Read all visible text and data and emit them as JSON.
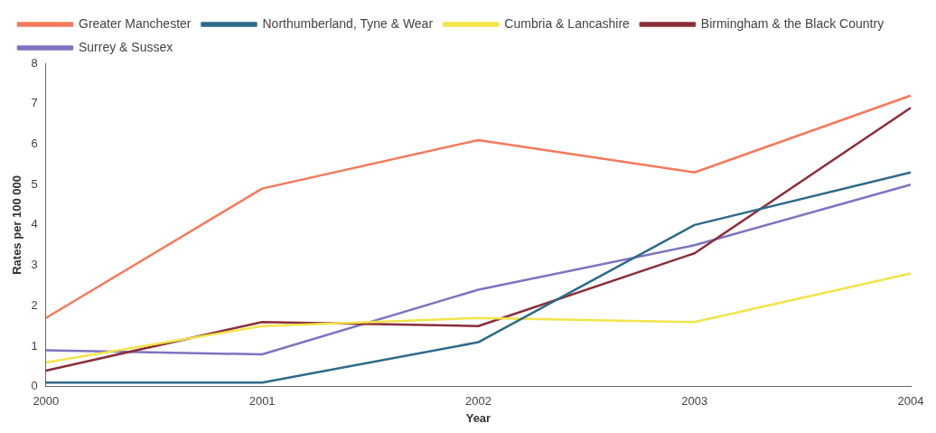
{
  "chart_data": {
    "type": "line",
    "xlabel": "Year",
    "ylabel": "Rates per 100 000",
    "categories": [
      "2000",
      "2001",
      "2002",
      "2003",
      "2004"
    ],
    "ylim": [
      0,
      8
    ],
    "yticks": [
      0,
      1,
      2,
      3,
      4,
      5,
      6,
      7,
      8
    ],
    "grid": false,
    "legend": "top",
    "marker": "none",
    "series": [
      {
        "name": "Greater Manchester",
        "color": "#f4795b",
        "values": [
          1.7,
          4.9,
          6.1,
          5.3,
          7.2
        ]
      },
      {
        "name": "Northumberland, Tyne & Wear",
        "color": "#2e6a8a",
        "values": [
          0.1,
          0.1,
          1.1,
          4.0,
          5.3
        ]
      },
      {
        "name": "Cumbria & Lancashire",
        "color": "#f2e44a",
        "values": [
          0.6,
          1.5,
          1.7,
          1.6,
          2.8
        ]
      },
      {
        "name": "Birmingham & the Black Country",
        "color": "#8b2e3a",
        "values": [
          0.4,
          1.6,
          1.5,
          3.3,
          6.9
        ]
      },
      {
        "name": "Surrey & Sussex",
        "color": "#7b74c0",
        "values": [
          0.9,
          0.8,
          2.4,
          3.5,
          5.0
        ]
      }
    ]
  }
}
